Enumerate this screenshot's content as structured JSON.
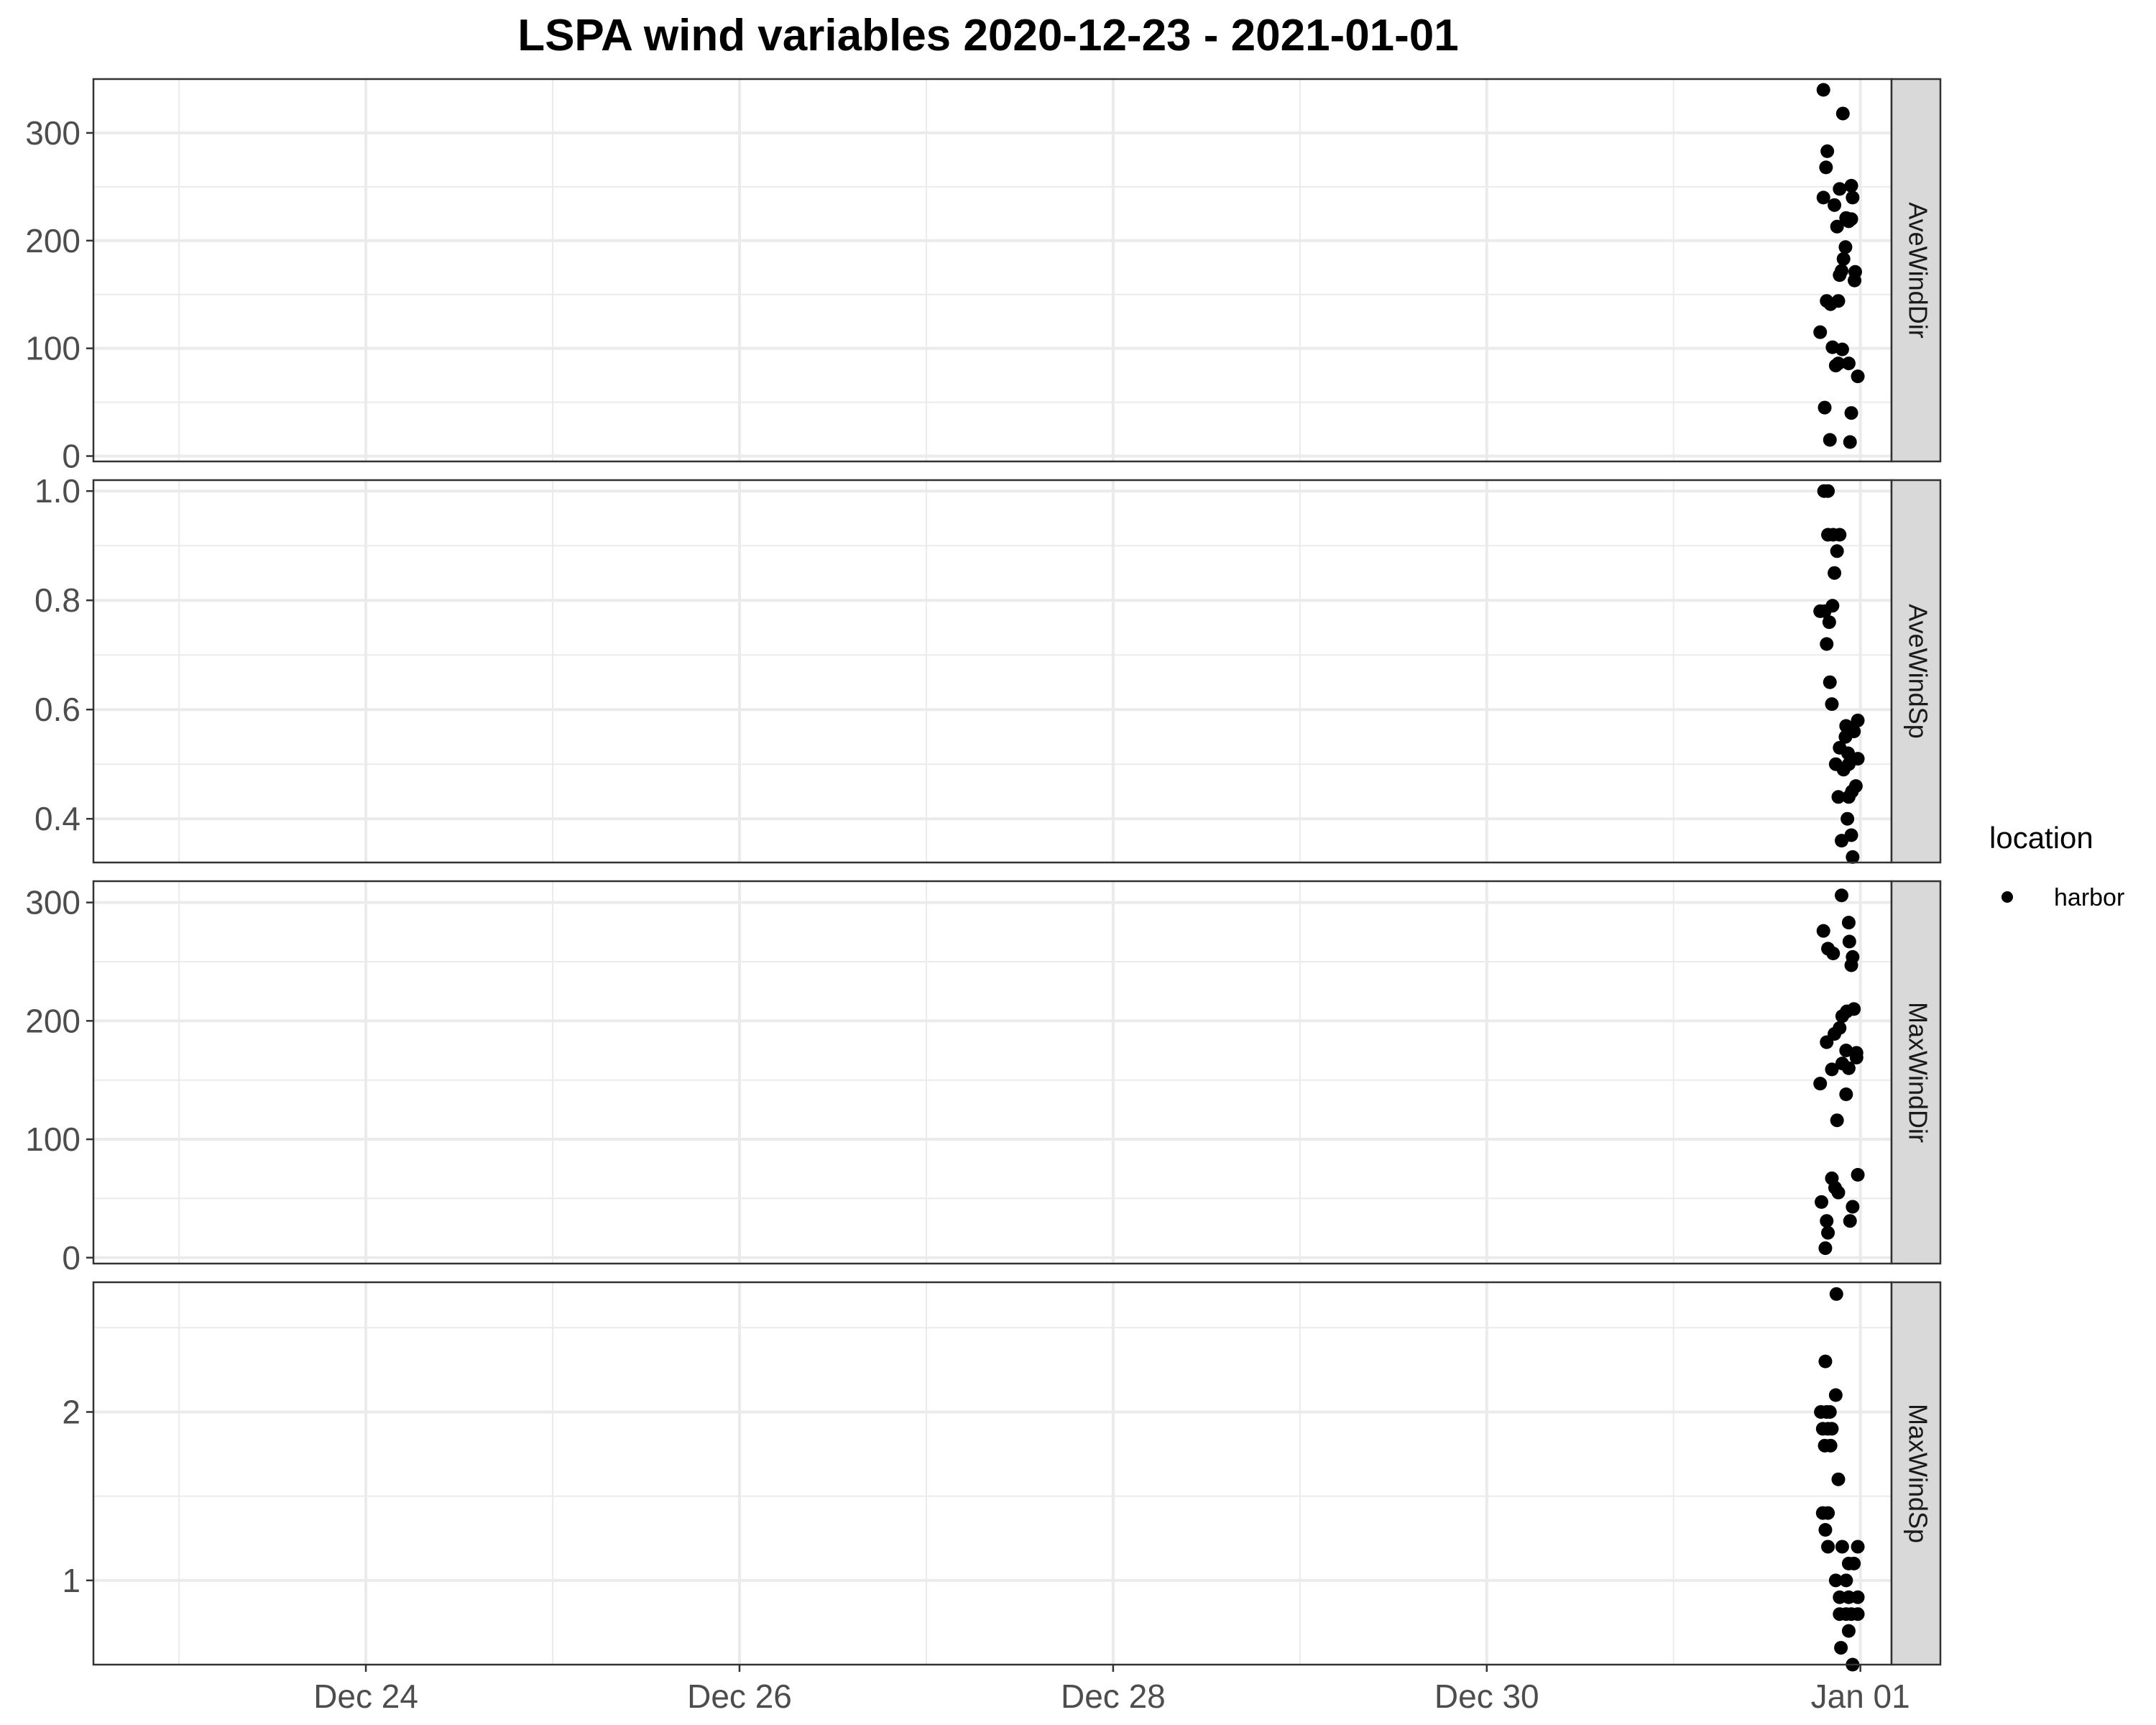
{
  "chart_data": {
    "type": "scatter",
    "title": "LSPA wind variables 2020-12-23 - 2021-01-01",
    "x_axis": {
      "type": "date",
      "range": [
        "2020-12-22T13:00",
        "2021-01-01T04:00"
      ],
      "ticks": [
        {
          "value": "2020-12-24",
          "label": "Dec 24"
        },
        {
          "value": "2020-12-26",
          "label": "Dec 26"
        },
        {
          "value": "2020-12-28",
          "label": "Dec 28"
        },
        {
          "value": "2020-12-30",
          "label": "Dec 30"
        },
        {
          "value": "2021-01-01",
          "label": "Jan 01"
        }
      ],
      "minor_gridlines": [
        "2020-12-23",
        "2020-12-25",
        "2020-12-27",
        "2020-12-29",
        "2020-12-31"
      ]
    },
    "grid": true,
    "legend": {
      "title": "location",
      "position": "right",
      "entries": [
        {
          "label": "harbor",
          "color": "#000000"
        }
      ]
    },
    "colors": {
      "point": "#000000",
      "strip_bg": "#d9d9d9",
      "grid": "#ebebeb",
      "panel_border": "#333333",
      "tick_label": "#4d4d4d"
    },
    "panels": [
      {
        "label": "AveWindDir",
        "ylim": [
          -5,
          350
        ],
        "y_ticks": [
          0,
          100,
          200,
          300
        ],
        "y_tick_labels": [
          "0",
          "100",
          "200",
          "300"
        ],
        "points": [
          [
            "2020-12-31T19:15",
            340
          ],
          [
            "2020-12-31T21:45",
            318
          ],
          [
            "2020-12-31T19:45",
            283
          ],
          [
            "2020-12-31T19:35",
            268
          ],
          [
            "2020-12-31T22:50",
            251
          ],
          [
            "2020-12-31T21:20",
            248
          ],
          [
            "2020-12-31T19:15",
            240
          ],
          [
            "2020-12-31T23:00",
            240
          ],
          [
            "2020-12-31T20:40",
            233
          ],
          [
            "2020-12-31T22:10",
            221
          ],
          [
            "2020-12-31T22:50",
            220
          ],
          [
            "2020-12-31T22:30",
            218
          ],
          [
            "2020-12-31T21:00",
            213
          ],
          [
            "2020-12-31T22:05",
            194
          ],
          [
            "2020-12-31T21:50",
            183
          ],
          [
            "2020-12-31T21:35",
            172
          ],
          [
            "2020-12-31T21:20",
            168
          ],
          [
            "2020-12-31T23:20",
            171
          ],
          [
            "2020-12-31T23:15",
            163
          ],
          [
            "2020-12-31T19:40",
            144
          ],
          [
            "2020-12-31T20:10",
            141
          ],
          [
            "2020-12-31T21:10",
            144
          ],
          [
            "2020-12-31T18:50",
            115
          ],
          [
            "2020-12-31T20:25",
            101
          ],
          [
            "2020-12-31T21:40",
            99
          ],
          [
            "2020-12-31T21:10",
            86
          ],
          [
            "2020-12-31T20:50",
            84
          ],
          [
            "2020-12-31T22:30",
            86
          ],
          [
            "2020-12-31T23:40",
            74
          ],
          [
            "2020-12-31T19:25",
            45
          ],
          [
            "2020-12-31T22:50",
            40
          ],
          [
            "2020-12-31T20:05",
            15
          ],
          [
            "2020-12-31T22:40",
            13
          ]
        ]
      },
      {
        "label": "AveWindSp",
        "ylim": [
          0.32,
          1.02
        ],
        "y_ticks": [
          0.4,
          0.6,
          0.8,
          1.0
        ],
        "y_tick_labels": [
          "0.4",
          "0.6",
          "0.8",
          "1.0"
        ],
        "points": [
          [
            "2020-12-31T19:20",
            1.0
          ],
          [
            "2020-12-31T19:50",
            1.0
          ],
          [
            "2020-12-31T19:50",
            0.92
          ],
          [
            "2020-12-31T20:30",
            0.92
          ],
          [
            "2020-12-31T21:20",
            0.92
          ],
          [
            "2020-12-31T21:00",
            0.89
          ],
          [
            "2020-12-31T20:40",
            0.85
          ],
          [
            "2020-12-31T18:50",
            0.78
          ],
          [
            "2020-12-31T19:25",
            0.78
          ],
          [
            "2020-12-31T20:25",
            0.79
          ],
          [
            "2020-12-31T20:00",
            0.76
          ],
          [
            "2020-12-31T19:40",
            0.72
          ],
          [
            "2020-12-31T20:05",
            0.65
          ],
          [
            "2020-12-31T20:20",
            0.61
          ],
          [
            "2020-12-31T23:40",
            0.58
          ],
          [
            "2020-12-31T22:10",
            0.57
          ],
          [
            "2020-12-31T23:10",
            0.56
          ],
          [
            "2020-12-31T22:05",
            0.55
          ],
          [
            "2020-12-31T21:20",
            0.53
          ],
          [
            "2020-12-31T22:25",
            0.52
          ],
          [
            "2020-12-31T22:50",
            0.51
          ],
          [
            "2020-12-31T23:40",
            0.51
          ],
          [
            "2020-12-31T20:50",
            0.5
          ],
          [
            "2020-12-31T21:50",
            0.49
          ],
          [
            "2020-12-31T22:30",
            0.5
          ],
          [
            "2020-12-31T23:25",
            0.46
          ],
          [
            "2020-12-31T22:55",
            0.45
          ],
          [
            "2020-12-31T21:10",
            0.44
          ],
          [
            "2020-12-31T22:30",
            0.44
          ],
          [
            "2020-12-31T22:20",
            0.4
          ],
          [
            "2020-12-31T22:50",
            0.37
          ],
          [
            "2020-12-31T21:35",
            0.36
          ],
          [
            "2020-12-31T23:00",
            0.33
          ]
        ]
      },
      {
        "label": "MaxWindDir",
        "ylim": [
          -5,
          318
        ],
        "y_ticks": [
          0,
          100,
          200,
          300
        ],
        "y_tick_labels": [
          "0",
          "100",
          "200",
          "300"
        ],
        "points": [
          [
            "2020-12-31T21:35",
            306
          ],
          [
            "2020-12-31T22:30",
            283
          ],
          [
            "2020-12-31T19:15",
            276
          ],
          [
            "2020-12-31T22:35",
            267
          ],
          [
            "2020-12-31T19:50",
            261
          ],
          [
            "2020-12-31T20:30",
            257
          ],
          [
            "2020-12-31T23:00",
            254
          ],
          [
            "2020-12-31T22:50",
            247
          ],
          [
            "2020-12-31T23:10",
            210
          ],
          [
            "2020-12-31T22:15",
            208
          ],
          [
            "2020-12-31T21:40",
            204
          ],
          [
            "2020-12-31T21:20",
            194
          ],
          [
            "2020-12-31T20:40",
            189
          ],
          [
            "2020-12-31T19:40",
            182
          ],
          [
            "2020-12-31T22:10",
            175
          ],
          [
            "2020-12-31T23:30",
            173
          ],
          [
            "2020-12-31T23:30",
            169
          ],
          [
            "2020-12-31T21:40",
            164
          ],
          [
            "2020-12-31T22:30",
            160
          ],
          [
            "2020-12-31T20:20",
            159
          ],
          [
            "2020-12-31T18:50",
            147
          ],
          [
            "2020-12-31T22:10",
            138
          ],
          [
            "2020-12-31T21:00",
            116
          ],
          [
            "2020-12-31T23:40",
            70
          ],
          [
            "2020-12-31T20:20",
            67
          ],
          [
            "2020-12-31T20:45",
            59
          ],
          [
            "2020-12-31T21:10",
            55
          ],
          [
            "2020-12-31T19:00",
            47
          ],
          [
            "2020-12-31T23:00",
            43
          ],
          [
            "2020-12-31T19:40",
            31
          ],
          [
            "2020-12-31T22:40",
            31
          ],
          [
            "2020-12-31T19:50",
            21
          ],
          [
            "2020-12-31T19:30",
            8
          ]
        ]
      },
      {
        "label": "MaxWindSp",
        "ylim": [
          0.5,
          2.77
        ],
        "y_ticks": [
          1,
          2
        ],
        "y_tick_labels": [
          "1",
          "2"
        ],
        "points": [
          [
            "2020-12-31T20:55",
            2.7
          ],
          [
            "2020-12-31T19:30",
            2.3
          ],
          [
            "2020-12-31T20:50",
            2.1
          ],
          [
            "2020-12-31T18:55",
            2.0
          ],
          [
            "2020-12-31T19:40",
            2.0
          ],
          [
            "2020-12-31T20:05",
            2.0
          ],
          [
            "2020-12-31T19:10",
            1.9
          ],
          [
            "2020-12-31T19:50",
            1.9
          ],
          [
            "2020-12-31T20:20",
            1.9
          ],
          [
            "2020-12-31T19:25",
            1.8
          ],
          [
            "2020-12-31T20:10",
            1.8
          ],
          [
            "2020-12-31T21:10",
            1.6
          ],
          [
            "2020-12-31T19:10",
            1.4
          ],
          [
            "2020-12-31T19:50",
            1.4
          ],
          [
            "2020-12-31T19:30",
            1.3
          ],
          [
            "2020-12-31T19:50",
            1.2
          ],
          [
            "2020-12-31T21:40",
            1.2
          ],
          [
            "2020-12-31T23:40",
            1.2
          ],
          [
            "2020-12-31T22:30",
            1.1
          ],
          [
            "2020-12-31T23:10",
            1.1
          ],
          [
            "2020-12-31T20:50",
            1.0
          ],
          [
            "2020-12-31T22:10",
            1.0
          ],
          [
            "2020-12-31T21:20",
            0.9
          ],
          [
            "2020-12-31T22:30",
            0.9
          ],
          [
            "2020-12-31T23:40",
            0.9
          ],
          [
            "2020-12-31T21:20",
            0.8
          ],
          [
            "2020-12-31T22:10",
            0.8
          ],
          [
            "2020-12-31T22:50",
            0.8
          ],
          [
            "2020-12-31T23:40",
            0.8
          ],
          [
            "2020-12-31T22:30",
            0.7
          ],
          [
            "2020-12-31T21:30",
            0.6
          ],
          [
            "2020-12-31T23:00",
            0.5
          ]
        ]
      }
    ]
  }
}
